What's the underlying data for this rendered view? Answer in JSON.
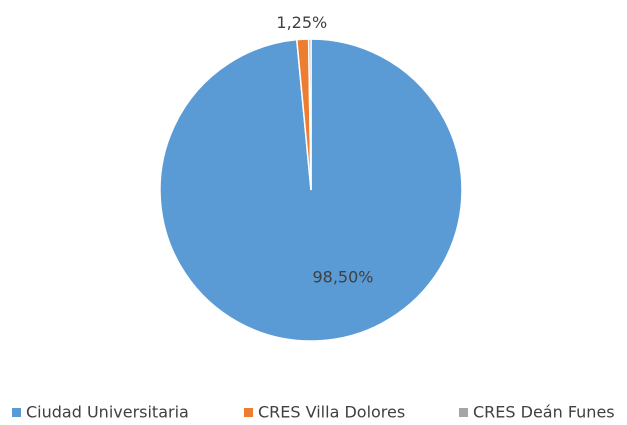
{
  "chart_data": {
    "type": "pie",
    "categories": [
      "Ciudad Universitaria",
      "CRES Villa Dolores",
      "CRES Deán Funes"
    ],
    "values": [
      98.5,
      1.25,
      0.25
    ],
    "value_labels": [
      "98,50%",
      "1,25%",
      null
    ],
    "colors": [
      "#5b9bd5",
      "#ed7d31",
      "#a5a5a5"
    ],
    "legend": "bottom"
  }
}
